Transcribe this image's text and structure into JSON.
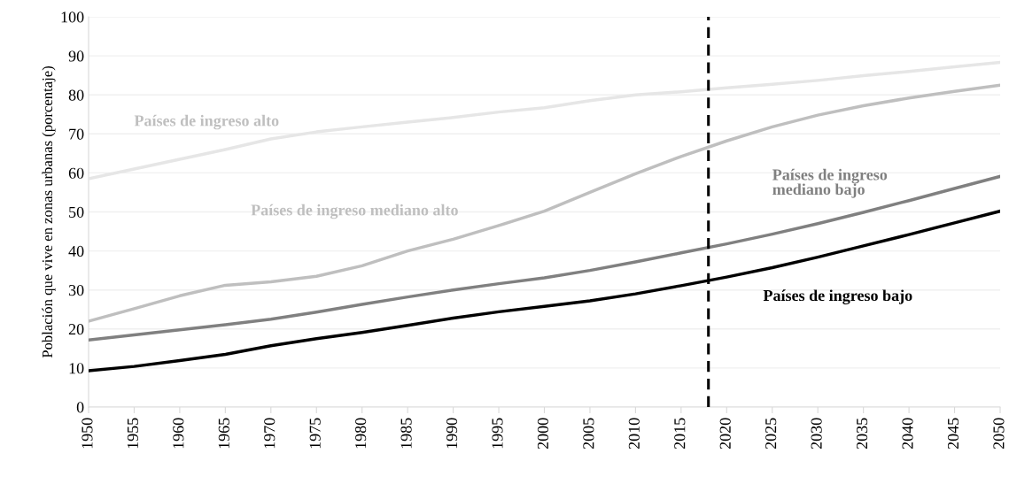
{
  "chart_data": {
    "type": "line",
    "ylabel": "Población que vive en zonas urbanas (porcentaje)",
    "x": [
      1950,
      1955,
      1960,
      1965,
      1970,
      1975,
      1980,
      1985,
      1990,
      1995,
      2000,
      2005,
      2010,
      2015,
      2020,
      2025,
      2030,
      2035,
      2040,
      2045,
      2050
    ],
    "series": [
      {
        "name": "Países de ingreso alto",
        "color": "#e6e6e6",
        "values": [
          58.5,
          61,
          63.5,
          66,
          68.7,
          70.5,
          71.8,
          73,
          74.2,
          75.6,
          76.7,
          78.5,
          80,
          80.8,
          81.8,
          82.7,
          83.7,
          84.9,
          86,
          87.2,
          88.3
        ]
      },
      {
        "name": "Países de ingreso mediano alto",
        "color": "#bfbfbf",
        "values": [
          22,
          25.2,
          28.5,
          31.2,
          32.1,
          33.5,
          36.2,
          40,
          43,
          46.5,
          50.2,
          55,
          59.8,
          64.2,
          68.2,
          71.8,
          74.8,
          77.2,
          79.2,
          80.9,
          82.5
        ]
      },
      {
        "name": "Países de ingreso\nmediano bajo",
        "color": "#808080",
        "values": [
          17.2,
          18.5,
          19.8,
          21.1,
          22.5,
          24.3,
          26.3,
          28.2,
          30,
          31.6,
          33.1,
          35,
          37.2,
          39.5,
          41.8,
          44.3,
          47,
          49.9,
          52.9,
          56,
          59.1
        ]
      },
      {
        "name": "Países de ingreso bajo",
        "color": "#000000",
        "values": [
          9.3,
          10.4,
          11.9,
          13.5,
          15.7,
          17.5,
          19.1,
          20.9,
          22.8,
          24.4,
          25.8,
          27.2,
          29,
          31.1,
          33.3,
          35.7,
          38.4,
          41.3,
          44.2,
          47.2,
          50.2
        ]
      }
    ],
    "xlim": [
      1950,
      2050
    ],
    "xticks": [
      1950,
      1955,
      1960,
      1965,
      1970,
      1975,
      1980,
      1985,
      1990,
      1995,
      2000,
      2005,
      2010,
      2015,
      2020,
      2025,
      2030,
      2035,
      2040,
      2045,
      2050
    ],
    "ylim": [
      0,
      100
    ],
    "yticks": [
      0,
      10,
      20,
      30,
      40,
      50,
      60,
      70,
      80,
      90,
      100
    ],
    "ref_lines": [
      {
        "axis": "x",
        "value": 2018,
        "color": "#000000",
        "line_style": "dashed"
      }
    ],
    "grid": "y",
    "legend": false,
    "marker": "none",
    "line_style": "solid"
  }
}
